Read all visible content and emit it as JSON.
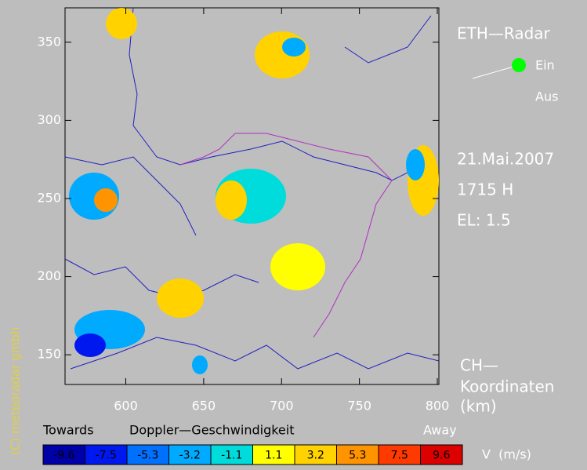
{
  "map": {
    "xlim": [
      561,
      801
    ],
    "ylim": [
      131,
      372
    ],
    "xticks": [
      600,
      650,
      700,
      750,
      800
    ],
    "yticks": [
      150,
      200,
      250,
      300,
      350
    ]
  },
  "header": {
    "title": "ETH—Radar",
    "switch_on": "Ein",
    "switch_off": "Aus",
    "date": "21.Mai.2007",
    "time": "1715 H",
    "elevation": "EL: 1.5"
  },
  "coordinates": [
    "CH—",
    "Koordinaten",
    "(km)"
  ],
  "copyright": "(C) meteoradar gmbh",
  "colorbar": {
    "left_label": "Towards",
    "title": "Doppler—Geschwindigkeit",
    "right_label": "Away",
    "unit": "V  (m/s)",
    "items": [
      {
        "value": -9.6,
        "color": "#0000a8"
      },
      {
        "value": -7.5,
        "color": "#0018f0"
      },
      {
        "value": -5.3,
        "color": "#0070ff"
      },
      {
        "value": -3.2,
        "color": "#00aaff"
      },
      {
        "value": -1.1,
        "color": "#00dcdc"
      },
      {
        "value": 1.1,
        "color": "#ffff00"
      },
      {
        "value": 3.2,
        "color": "#ffd200"
      },
      {
        "value": 5.3,
        "color": "#ff9400"
      },
      {
        "value": 7.5,
        "color": "#ff3a00"
      },
      {
        "value": 9.6,
        "color": "#dc0000"
      }
    ]
  }
}
